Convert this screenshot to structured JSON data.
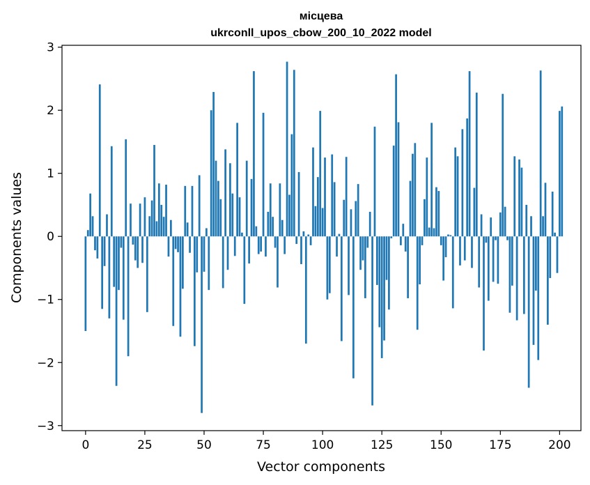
{
  "chart_data": {
    "type": "bar",
    "title": "місцева",
    "subtitle": "ukrconll_upos_cbow_200_10_2022 model",
    "xlabel": "Vector components",
    "ylabel": "Components values",
    "xlim": [
      -9.95,
      209
    ],
    "ylim": [
      -3.08,
      3.03
    ],
    "xticks": [
      0,
      25,
      50,
      75,
      100,
      125,
      150,
      175,
      200
    ],
    "yticks": [
      -3,
      -2,
      -1,
      0,
      1,
      2,
      3
    ],
    "ytick_labels": [
      "−3",
      "−2",
      "−1",
      "0",
      "1",
      "2",
      "3"
    ],
    "bar_color": "#1f77b4",
    "grid": false,
    "values": [
      -1.5,
      0.1,
      0.68,
      0.32,
      -0.22,
      -0.35,
      2.41,
      -1.15,
      -0.47,
      0.35,
      -1.3,
      1.43,
      -0.8,
      -2.37,
      -0.85,
      -0.18,
      -1.32,
      1.54,
      -1.9,
      0.52,
      -0.13,
      -0.38,
      -0.5,
      0.52,
      -0.42,
      0.62,
      -1.2,
      0.32,
      0.57,
      1.45,
      0.24,
      0.84,
      0.5,
      0.31,
      0.82,
      -0.32,
      0.26,
      -1.42,
      -0.2,
      -0.25,
      -1.59,
      -0.83,
      0.8,
      0.22,
      -0.26,
      0.8,
      -1.74,
      -0.57,
      0.97,
      -2.8,
      -0.56,
      0.13,
      -0.85,
      2.0,
      2.29,
      1.2,
      0.88,
      0.59,
      -0.82,
      1.38,
      -0.53,
      1.16,
      0.68,
      -0.31,
      1.8,
      0.62,
      0.06,
      -1.07,
      1.2,
      -0.43,
      0.91,
      2.62,
      0.16,
      -0.28,
      -0.24,
      1.96,
      -0.32,
      0.39,
      0.84,
      0.31,
      -0.18,
      -0.81,
      0.84,
      0.26,
      -0.28,
      2.77,
      0.66,
      1.62,
      2.64,
      -0.12,
      1.02,
      -0.44,
      0.08,
      -1.7,
      0.03,
      -0.14,
      1.41,
      0.48,
      0.94,
      1.99,
      0.45,
      1.25,
      -1.0,
      -0.9,
      1.3,
      0.86,
      -0.32,
      0.04,
      -1.66,
      0.58,
      1.26,
      -0.93,
      0.43,
      -2.25,
      0.56,
      0.83,
      -0.53,
      -0.38,
      -0.98,
      -0.18,
      0.39,
      -2.68,
      1.74,
      -0.77,
      -1.44,
      -1.93,
      -1.65,
      -0.69,
      -1.16,
      -0.03,
      1.44,
      2.57,
      1.81,
      -0.14,
      0.2,
      -0.24,
      -0.98,
      0.88,
      1.31,
      1.48,
      -1.48,
      -0.76,
      -0.14,
      0.59,
      1.25,
      0.14,
      1.8,
      0.13,
      0.78,
      0.72,
      -0.14,
      -0.7,
      -0.33,
      0.03,
      0.02,
      -1.14,
      1.41,
      1.27,
      -0.46,
      1.7,
      -0.38,
      1.87,
      2.62,
      -0.5,
      0.77,
      2.28,
      -0.81,
      0.35,
      -1.81,
      -0.1,
      -1.02,
      0.3,
      -0.72,
      -0.06,
      -0.75,
      0.38,
      2.26,
      0.47,
      -0.06,
      -1.21,
      -0.78,
      1.27,
      -1.33,
      1.22,
      1.09,
      -1.23,
      0.5,
      -2.4,
      0.32,
      -1.72,
      -0.86,
      -1.96,
      2.63,
      0.32,
      0.85,
      -1.4,
      -0.66,
      0.71,
      0.06,
      -0.58,
      1.99,
      2.06
    ]
  }
}
